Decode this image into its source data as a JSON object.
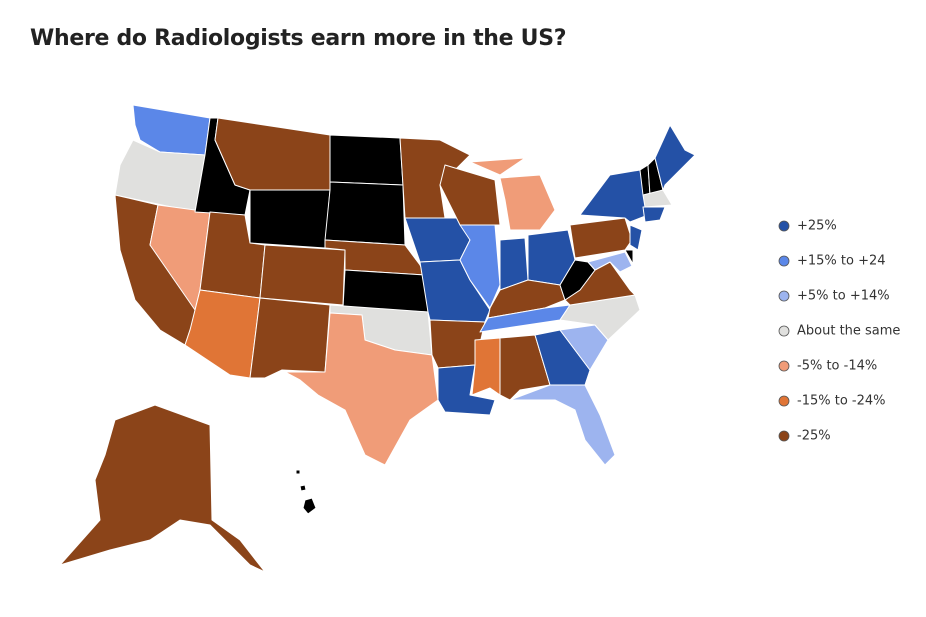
{
  "title": "Where do Radiologists earn more in the US?",
  "legend": [
    {
      "label": "+25%",
      "color": "#2451a6"
    },
    {
      "label": "+15% to +24",
      "color": "#5b87e8"
    },
    {
      "label": "+5% to +14%",
      "color": "#9db4ef"
    },
    {
      "label": "About the same",
      "color": "#e0e0de"
    },
    {
      "label": "-5% to -14%",
      "color": "#f09c78"
    },
    {
      "label": "-15% to -24%",
      "color": "#e07536"
    },
    {
      "label": "-25%",
      "color": "#8b4419"
    }
  ]
}
